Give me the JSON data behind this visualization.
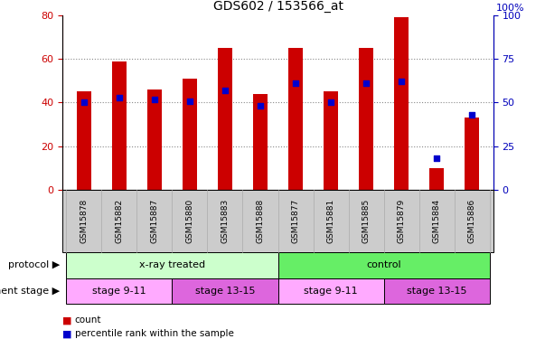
{
  "title": "GDS602 / 153566_at",
  "samples": [
    "GSM15878",
    "GSM15882",
    "GSM15887",
    "GSM15880",
    "GSM15883",
    "GSM15888",
    "GSM15877",
    "GSM15881",
    "GSM15885",
    "GSM15879",
    "GSM15884",
    "GSM15886"
  ],
  "counts": [
    45,
    59,
    46,
    51,
    65,
    44,
    65,
    45,
    65,
    79,
    10,
    33
  ],
  "percentiles": [
    50,
    53,
    52,
    51,
    57,
    48,
    61,
    50,
    61,
    62,
    18,
    43
  ],
  "ylim_left": [
    0,
    80
  ],
  "ylim_right": [
    0,
    100
  ],
  "yticks_left": [
    0,
    20,
    40,
    60,
    80
  ],
  "yticks_right": [
    0,
    25,
    50,
    75,
    100
  ],
  "bar_color": "#cc0000",
  "dot_color": "#0000cc",
  "bar_width": 0.4,
  "protocol_colors": {
    "x-ray treated": "#ccffcc",
    "control": "#66ee66"
  },
  "stage_color_odd": "#ffaaff",
  "stage_color_even": "#dd66dd",
  "tick_color_left": "#cc0000",
  "tick_color_right": "#0000bb",
  "grid_color": "#888888",
  "bg_gray": "#cccccc",
  "right_axis_label": "100%"
}
